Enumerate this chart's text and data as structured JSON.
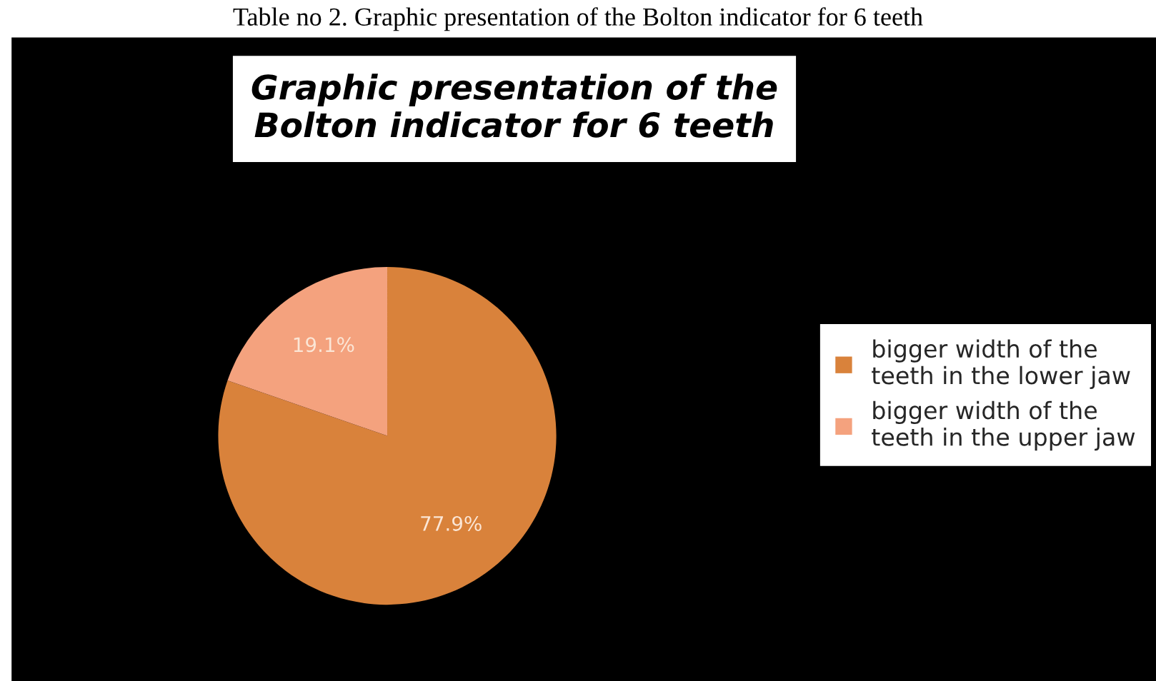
{
  "chart_data": {
    "type": "pie",
    "title": "Graphic presentation of the Bolton indicator for 6 teeth",
    "annotations": [
      "Table no 2. Graphic presentation of the Bolton indicator for 6 teeth"
    ],
    "categories": [
      "bigger width of the teeth in the lower jaw",
      "bigger width of the teeth in the upper jaw"
    ],
    "values": [
      77.9,
      19.1
    ],
    "value_labels": [
      "77.9%",
      "19.1%"
    ],
    "colors": [
      "#d9823b",
      "#f4a27e"
    ],
    "legend": "right"
  }
}
